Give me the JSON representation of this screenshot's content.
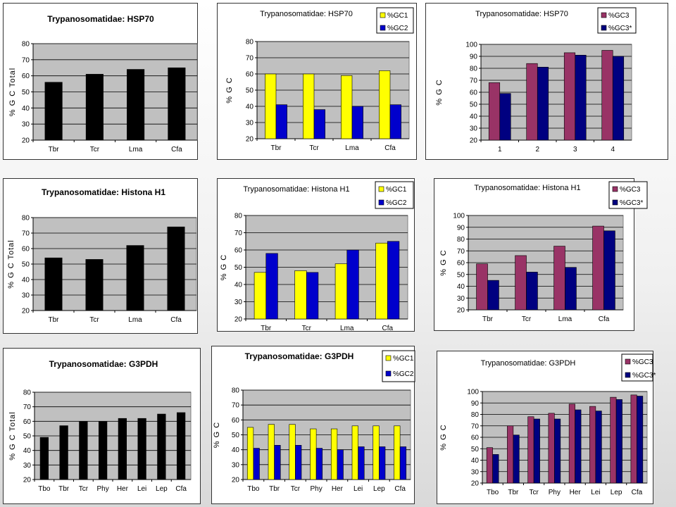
{
  "colors": {
    "black_bar": "#000000",
    "yellow_bar": "#ffff00",
    "blue_bar": "#0000cc",
    "maroon_bar": "#993366",
    "navy_bar": "#000080",
    "plot_bg": "#c0c0c0"
  },
  "chart_data": [
    {
      "id": "hsp70-total",
      "type": "bar",
      "title": "Trypanosomatidae: HSP70",
      "xlabel": "",
      "ylabel": "% G C Total",
      "categories": [
        "Tbr",
        "Tcr",
        "Lma",
        "Cfa"
      ],
      "series": [
        {
          "name": "",
          "color": "#000000",
          "values": [
            56,
            61,
            64,
            65
          ]
        }
      ],
      "ylim": [
        20,
        80
      ],
      "yticks": [
        20,
        30,
        40,
        50,
        60,
        70,
        80
      ],
      "grid": true,
      "legend": "none"
    },
    {
      "id": "hsp70-gc12",
      "type": "bar",
      "title": "Trypanosomatidae: HSP70",
      "xlabel": "",
      "ylabel": "% G C",
      "categories": [
        "Tbr",
        "Tcr",
        "Lma",
        "Cfa"
      ],
      "series": [
        {
          "name": "%GC1",
          "color": "#ffff00",
          "values": [
            60,
            60,
            59,
            62
          ]
        },
        {
          "name": "%GC2",
          "color": "#0000cc",
          "values": [
            41,
            38,
            40,
            41
          ]
        }
      ],
      "ylim": [
        20,
        80
      ],
      "yticks": [
        20,
        30,
        40,
        50,
        60,
        70,
        80
      ],
      "grid": true,
      "legend": "top-right"
    },
    {
      "id": "hsp70-gc3",
      "type": "bar",
      "title": "Trypanosomatidae: HSP70",
      "xlabel": "",
      "ylabel": "% G C",
      "categories": [
        "1",
        "2",
        "3",
        "4"
      ],
      "series": [
        {
          "name": "%GC3",
          "color": "#993366",
          "values": [
            68,
            84,
            93,
            95
          ]
        },
        {
          "name": "%GC3*",
          "color": "#000080",
          "values": [
            59,
            81,
            91,
            90
          ]
        }
      ],
      "ylim": [
        20,
        100
      ],
      "yticks": [
        20,
        30,
        40,
        50,
        60,
        70,
        80,
        90,
        100
      ],
      "grid": true,
      "legend": "top-right"
    },
    {
      "id": "h1-total",
      "type": "bar",
      "title": "Trypanosomatidae: Histona H1",
      "xlabel": "",
      "ylabel": "% G C Total",
      "categories": [
        "Tbr",
        "Tcr",
        "Lma",
        "Cfa"
      ],
      "series": [
        {
          "name": "",
          "color": "#000000",
          "values": [
            54,
            53,
            62,
            74
          ]
        }
      ],
      "ylim": [
        20,
        80
      ],
      "yticks": [
        20,
        30,
        40,
        50,
        60,
        70,
        80
      ],
      "grid": true,
      "legend": "none"
    },
    {
      "id": "h1-gc12",
      "type": "bar",
      "title": "Trypanosomatidae: Histona H1",
      "xlabel": "",
      "ylabel": "% G C",
      "categories": [
        "Tbr",
        "Tcr",
        "Lma",
        "Cfa"
      ],
      "series": [
        {
          "name": "%GC1",
          "color": "#ffff00",
          "values": [
            47,
            48,
            52,
            64
          ]
        },
        {
          "name": "%GC2",
          "color": "#0000cc",
          "values": [
            58,
            47,
            60,
            65
          ]
        }
      ],
      "ylim": [
        20,
        80
      ],
      "yticks": [
        20,
        30,
        40,
        50,
        60,
        70,
        80
      ],
      "grid": true,
      "legend": "top-right"
    },
    {
      "id": "h1-gc3",
      "type": "bar",
      "title": "Trypanosomatidae: Histona H1",
      "xlabel": "",
      "ylabel": "% G C",
      "categories": [
        "Tbr",
        "Tcr",
        "Lma",
        "Cfa"
      ],
      "series": [
        {
          "name": "%GC3",
          "color": "#993366",
          "values": [
            59,
            66,
            74,
            91
          ]
        },
        {
          "name": "%GC3*",
          "color": "#000080",
          "values": [
            45,
            52,
            56,
            87
          ]
        }
      ],
      "ylim": [
        20,
        100
      ],
      "yticks": [
        20,
        30,
        40,
        50,
        60,
        70,
        80,
        90,
        100
      ],
      "grid": true,
      "legend": "top-right"
    },
    {
      "id": "g3pdh-total",
      "type": "bar",
      "title": "Trypanosomatidae: G3PDH",
      "xlabel": "",
      "ylabel": "% G C Total",
      "categories": [
        "Tbo",
        "Tbr",
        "Tcr",
        "Phy",
        "Her",
        "Lei",
        "Lep",
        "Cfa"
      ],
      "series": [
        {
          "name": "",
          "color": "#000000",
          "values": [
            49,
            57,
            60,
            60,
            62,
            62,
            65,
            66
          ]
        }
      ],
      "ylim": [
        20,
        80
      ],
      "yticks": [
        20,
        30,
        40,
        50,
        60,
        70,
        80
      ],
      "grid": true,
      "legend": "none"
    },
    {
      "id": "g3pdh-gc12",
      "type": "bar",
      "title": "Trypanosomatidae: G3PDH",
      "xlabel": "",
      "ylabel": "% G C",
      "categories": [
        "Tbo",
        "Tbr",
        "Tcr",
        "Phy",
        "Her",
        "Lei",
        "Lep",
        "Cfa"
      ],
      "series": [
        {
          "name": "%GC1",
          "color": "#ffff00",
          "values": [
            55,
            57,
            57,
            54,
            54,
            56,
            56,
            56
          ]
        },
        {
          "name": "%GC2",
          "color": "#0000cc",
          "values": [
            41,
            43,
            43,
            41,
            40,
            42,
            42,
            42
          ]
        }
      ],
      "ylim": [
        20,
        80
      ],
      "yticks": [
        20,
        30,
        40,
        50,
        60,
        70,
        80
      ],
      "grid": true,
      "legend": "top-right"
    },
    {
      "id": "g3pdh-gc3",
      "type": "bar",
      "title": "Trypanosomatidae: G3PDH",
      "xlabel": "",
      "ylabel": "% G C",
      "categories": [
        "Tbo",
        "Tbr",
        "Tcr",
        "Phy",
        "Her",
        "Lei",
        "Lep",
        "Cfa"
      ],
      "series": [
        {
          "name": "%GC3",
          "color": "#993366",
          "values": [
            51,
            70,
            78,
            81,
            89,
            87,
            95,
            97
          ]
        },
        {
          "name": "%GC3*",
          "color": "#000080",
          "values": [
            45,
            62,
            76,
            76,
            84,
            83,
            93,
            96
          ]
        }
      ],
      "ylim": [
        20,
        100
      ],
      "yticks": [
        20,
        30,
        40,
        50,
        60,
        70,
        80,
        90,
        100
      ],
      "grid": true,
      "legend": "top-right"
    }
  ]
}
